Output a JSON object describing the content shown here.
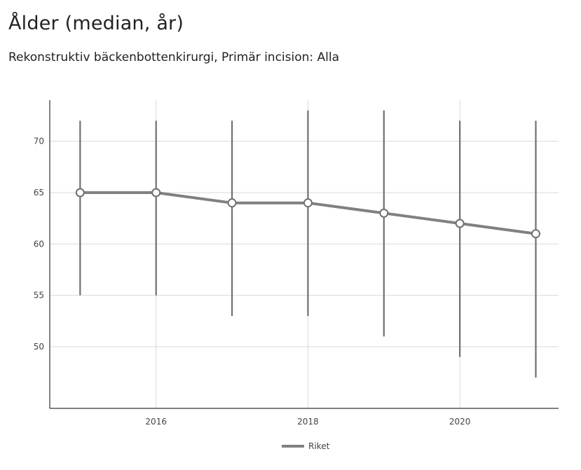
{
  "header": {
    "title": "Ålder (median, år)",
    "subtitle": "Rekonstruktiv bäckenbottenkirurgi, Primär incision: Alla"
  },
  "chart_data": {
    "type": "line",
    "title": "Ålder (median, år)",
    "subtitle": "Rekonstruktiv bäckenbottenkirurgi, Primär incision: Alla",
    "xlabel": "",
    "ylabel": "",
    "x_ticks": [
      2016,
      2018,
      2020
    ],
    "y_ticks": [
      50,
      55,
      60,
      65,
      70
    ],
    "xlim": [
      2014.6,
      2021.3
    ],
    "ylim": [
      44,
      74
    ],
    "grid": true,
    "legend": "bottom-center",
    "series": [
      {
        "name": "Riket",
        "color": "#808080",
        "x": [
          2015,
          2016,
          2017,
          2018,
          2019,
          2020,
          2021
        ],
        "y": [
          65,
          65,
          64,
          64,
          63,
          62,
          61
        ],
        "error_low": [
          55,
          55,
          53,
          53,
          51,
          49,
          47
        ],
        "error_high": [
          72,
          72,
          72,
          73,
          73,
          72,
          72
        ]
      }
    ]
  }
}
